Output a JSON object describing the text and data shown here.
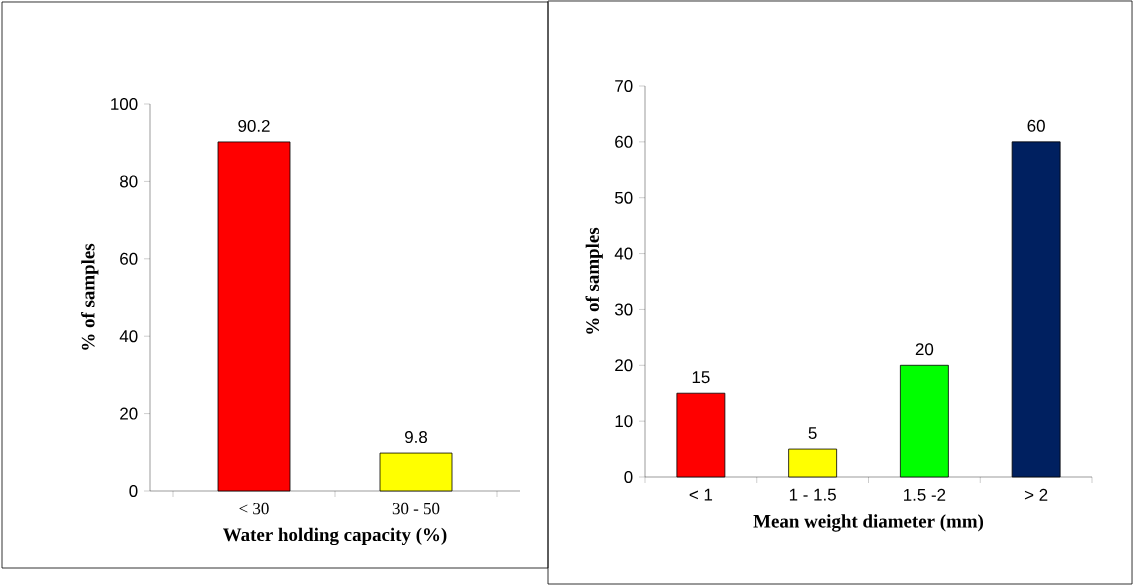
{
  "chart_data": [
    {
      "type": "bar",
      "categories": [
        "< 30",
        "30 - 50"
      ],
      "values": [
        90.2,
        9.8
      ],
      "colors": [
        "#ff0000",
        "#ffff00"
      ],
      "ylim": [
        0,
        100
      ],
      "yticks": [
        0,
        20,
        40,
        60,
        80,
        100
      ],
      "xlabel": "Water holding capacity (%)",
      "ylabel": "% of samples",
      "data_labels": true
    },
    {
      "type": "bar",
      "categories": [
        "< 1",
        "1 - 1.5",
        "1.5 -2",
        "> 2"
      ],
      "values": [
        15,
        5,
        20,
        60
      ],
      "colors": [
        "#ff0000",
        "#ffff00",
        "#00ff00",
        "#002060"
      ],
      "ylim": [
        0,
        70
      ],
      "yticks": [
        0,
        10,
        20,
        30,
        40,
        50,
        60,
        70
      ],
      "xlabel": "Mean weight diameter (mm)",
      "ylabel": "% of samples",
      "data_labels": true
    }
  ]
}
